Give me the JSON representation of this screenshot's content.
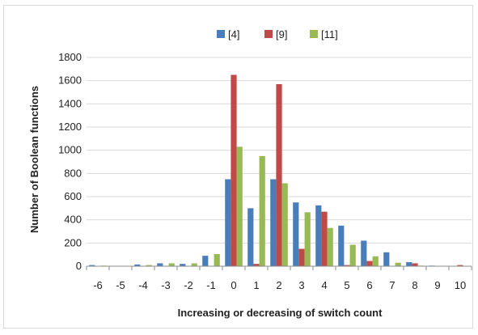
{
  "chart_data": {
    "type": "bar",
    "title": "",
    "xlabel": "Increasing or decreasing of switch count",
    "ylabel": "Number  of  Boolean functions",
    "ylim": [
      0,
      1800
    ],
    "yticks": [
      0,
      200,
      400,
      600,
      800,
      1000,
      1200,
      1400,
      1600,
      1800
    ],
    "grid": true,
    "legend_position": "top-center",
    "categories": [
      "-6",
      "-5",
      "-4",
      "-3",
      "-2",
      "-1",
      "0",
      "1",
      "2",
      "3",
      "4",
      "5",
      "6",
      "7",
      "8",
      "9",
      "10"
    ],
    "series": [
      {
        "name": "[4]",
        "color": "#4a7ebb",
        "values": [
          10,
          0,
          15,
          25,
          20,
          90,
          750,
          500,
          750,
          550,
          525,
          350,
          220,
          120,
          35,
          5,
          0
        ]
      },
      {
        "name": "[9]",
        "color": "#be4b48",
        "values": [
          0,
          0,
          0,
          0,
          0,
          0,
          1650,
          20,
          1570,
          150,
          470,
          10,
          45,
          0,
          25,
          0,
          10
        ]
      },
      {
        "name": "[11]",
        "color": "#98b954",
        "values": [
          5,
          0,
          10,
          25,
          25,
          105,
          1030,
          950,
          715,
          465,
          330,
          185,
          85,
          30,
          5,
          0,
          0
        ]
      }
    ]
  }
}
